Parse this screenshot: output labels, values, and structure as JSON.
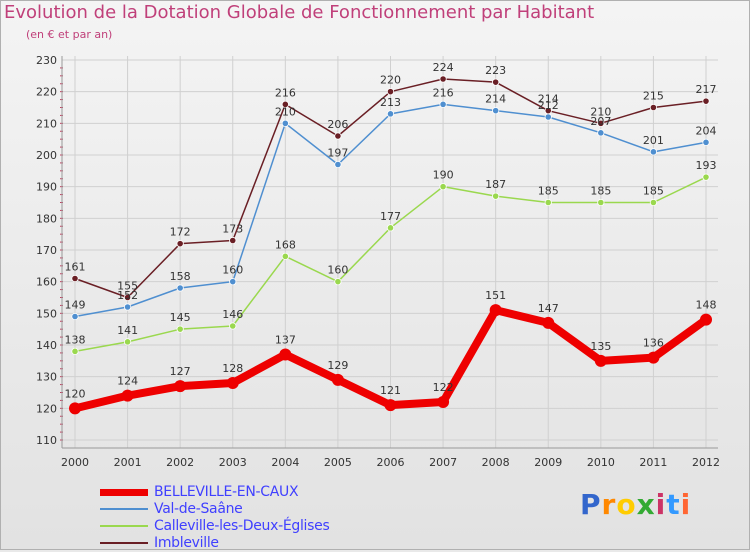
{
  "header": {
    "title": "Evolution de la Dotation Globale de Fonctionnement par Habitant",
    "subtitle": "(en € et par an)"
  },
  "brand": {
    "text": "Proxiti",
    "colors": [
      "#3366cc",
      "#ff8800",
      "#ffcc00",
      "#33aa33",
      "#cc3366",
      "#3399ff",
      "#ff6633"
    ]
  },
  "chart_data": {
    "type": "line",
    "title": "Evolution de la Dotation Globale de Fonctionnement par Habitant",
    "subtitle": "(en € et par an)",
    "xlabel": "",
    "ylabel": "",
    "ylim": [
      110,
      230
    ],
    "yticks": [
      110,
      120,
      130,
      140,
      150,
      160,
      170,
      180,
      190,
      200,
      210,
      220,
      230
    ],
    "categories": [
      "2000",
      "2001",
      "2002",
      "2003",
      "2004",
      "2005",
      "2006",
      "2007",
      "2008",
      "2009",
      "2010",
      "2011",
      "2012"
    ],
    "grid": true,
    "legend_position": "bottom-left",
    "series": [
      {
        "name": "BELLEVILLE-EN-CAUX",
        "color": "#ee0000",
        "values": [
          120,
          124,
          127,
          128,
          137,
          129,
          121,
          122,
          151,
          147,
          135,
          136,
          148
        ]
      },
      {
        "name": "Val-de-Saâne",
        "color": "#4f8fd0",
        "values": [
          149,
          152,
          158,
          160,
          210,
          197,
          213,
          216,
          214,
          212,
          207,
          201,
          204
        ]
      },
      {
        "name": "Calleville-les-Deux-Églises",
        "color": "#9ad84e",
        "values": [
          138,
          141,
          145,
          146,
          168,
          160,
          177,
          190,
          187,
          185,
          185,
          185,
          193
        ]
      },
      {
        "name": "Imbleville",
        "color": "#6a1f25",
        "values": [
          161,
          155,
          172,
          173,
          216,
          206,
          220,
          224,
          223,
          214,
          210,
          215,
          217
        ]
      }
    ]
  }
}
